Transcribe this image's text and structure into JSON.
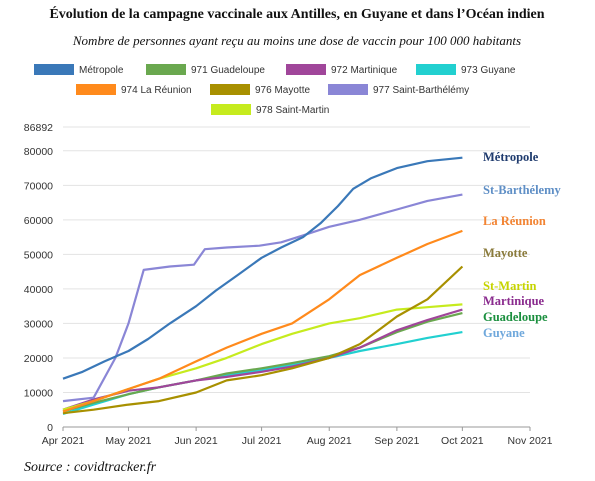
{
  "chart_data": {
    "type": "line",
    "title": "Évolution de la campagne vaccinale aux Antilles, en Guyane et dans l’Océan indien",
    "subtitle": "Nombre de personnes ayant reçu au moins une dose de vaccin pour 100 000 habitants",
    "source": "Source : covidtracker.fr",
    "ymax_label": "86892",
    "ylim": [
      0,
      86892
    ],
    "y_ticks": [
      0,
      10000,
      20000,
      30000,
      40000,
      50000,
      60000,
      70000,
      80000
    ],
    "x_ticks": [
      "Apr 2021",
      "May 2021",
      "Jun 2021",
      "Jul 2021",
      "Aug 2021",
      "Sep 2021",
      "Oct 2021",
      "Nov 2021"
    ],
    "xlim": [
      "2021-04-01",
      "2021-11-01"
    ],
    "grid": true,
    "legend_position": "top",
    "series": [
      {
        "name": "Métropole",
        "end_label": "Métropole",
        "color": "#3a78b8",
        "label_color": "#1f3b6e",
        "points": [
          [
            "2021-04-01",
            14000
          ],
          [
            "2021-04-10",
            16000
          ],
          [
            "2021-04-20",
            19000
          ],
          [
            "2021-05-01",
            22000
          ],
          [
            "2021-05-10",
            25500
          ],
          [
            "2021-05-20",
            30000
          ],
          [
            "2021-06-01",
            35000
          ],
          [
            "2021-06-10",
            39500
          ],
          [
            "2021-06-20",
            44000
          ],
          [
            "2021-07-01",
            49000
          ],
          [
            "2021-07-10",
            52000
          ],
          [
            "2021-07-20",
            55000
          ],
          [
            "2021-07-28",
            59000
          ],
          [
            "2021-08-05",
            64000
          ],
          [
            "2021-08-12",
            69000
          ],
          [
            "2021-08-20",
            72000
          ],
          [
            "2021-09-01",
            75000
          ],
          [
            "2021-09-15",
            77000
          ],
          [
            "2021-10-01",
            78000
          ]
        ]
      },
      {
        "name": "977 Saint-Barthélémy",
        "end_label": "St-Barthélemy",
        "color": "#8a86d6",
        "label_color": "#5f8fc6",
        "points": [
          [
            "2021-04-01",
            7500
          ],
          [
            "2021-04-15",
            8500
          ],
          [
            "2021-04-25",
            20000
          ],
          [
            "2021-05-01",
            30000
          ],
          [
            "2021-05-08",
            45500
          ],
          [
            "2021-05-20",
            46500
          ],
          [
            "2021-05-31",
            47000
          ],
          [
            "2021-06-05",
            51500
          ],
          [
            "2021-06-15",
            52000
          ],
          [
            "2021-06-30",
            52500
          ],
          [
            "2021-07-10",
            53500
          ],
          [
            "2021-07-20",
            55500
          ],
          [
            "2021-08-01",
            58000
          ],
          [
            "2021-08-15",
            60000
          ],
          [
            "2021-09-01",
            63000
          ],
          [
            "2021-09-15",
            65500
          ],
          [
            "2021-10-01",
            67300
          ]
        ]
      },
      {
        "name": "974 La Réunion",
        "end_label": "La Réunion",
        "color": "#ff8a1c",
        "label_color": "#f28433",
        "points": [
          [
            "2021-04-01",
            4500
          ],
          [
            "2021-04-15",
            7500
          ],
          [
            "2021-05-01",
            11000
          ],
          [
            "2021-05-15",
            14000
          ],
          [
            "2021-06-01",
            19000
          ],
          [
            "2021-06-15",
            23000
          ],
          [
            "2021-07-01",
            27000
          ],
          [
            "2021-07-15",
            30000
          ],
          [
            "2021-08-01",
            37000
          ],
          [
            "2021-08-15",
            44000
          ],
          [
            "2021-09-01",
            49000
          ],
          [
            "2021-09-15",
            53000
          ],
          [
            "2021-10-01",
            56800
          ]
        ]
      },
      {
        "name": "976 Mayotte",
        "end_label": "Mayotte",
        "color": "#a89000",
        "label_color": "#8a7a3a",
        "points": [
          [
            "2021-04-01",
            4000
          ],
          [
            "2021-04-15",
            5000
          ],
          [
            "2021-05-01",
            6500
          ],
          [
            "2021-05-15",
            7500
          ],
          [
            "2021-06-01",
            10000
          ],
          [
            "2021-06-15",
            13500
          ],
          [
            "2021-07-01",
            15000
          ],
          [
            "2021-07-15",
            17000
          ],
          [
            "2021-08-01",
            20000
          ],
          [
            "2021-08-15",
            24000
          ],
          [
            "2021-09-01",
            32000
          ],
          [
            "2021-09-15",
            37000
          ],
          [
            "2021-10-01",
            46500
          ]
        ]
      },
      {
        "name": "978 Saint-Martin",
        "end_label": "St-Martin",
        "color": "#c6eb1e",
        "label_color": "#c6d400",
        "points": [
          [
            "2021-04-01",
            5000
          ],
          [
            "2021-04-15",
            7500
          ],
          [
            "2021-05-01",
            11000
          ],
          [
            "2021-05-15",
            14000
          ],
          [
            "2021-06-01",
            17000
          ],
          [
            "2021-06-15",
            20000
          ],
          [
            "2021-07-01",
            24000
          ],
          [
            "2021-07-15",
            27000
          ],
          [
            "2021-08-01",
            30000
          ],
          [
            "2021-08-15",
            31500
          ],
          [
            "2021-09-01",
            34000
          ],
          [
            "2021-09-15",
            34700
          ],
          [
            "2021-10-01",
            35500
          ]
        ]
      },
      {
        "name": "972 Martinique",
        "end_label": "Martinique",
        "color": "#a0469a",
        "label_color": "#8a2b8e",
        "points": [
          [
            "2021-04-01",
            5000
          ],
          [
            "2021-04-15",
            8000
          ],
          [
            "2021-05-01",
            10500
          ],
          [
            "2021-05-15",
            11500
          ],
          [
            "2021-06-01",
            13500
          ],
          [
            "2021-06-15",
            14500
          ],
          [
            "2021-07-01",
            16000
          ],
          [
            "2021-07-15",
            17500
          ],
          [
            "2021-08-01",
            20000
          ],
          [
            "2021-08-15",
            23000
          ],
          [
            "2021-09-01",
            28000
          ],
          [
            "2021-09-15",
            31000
          ],
          [
            "2021-10-01",
            34000
          ]
        ]
      },
      {
        "name": "971 Guadeloupe",
        "end_label": "Guadeloupe",
        "color": "#6aa84f",
        "label_color": "#1a8f3e",
        "points": [
          [
            "2021-04-01",
            4500
          ],
          [
            "2021-04-15",
            7000
          ],
          [
            "2021-05-01",
            9500
          ],
          [
            "2021-05-15",
            11500
          ],
          [
            "2021-06-01",
            13500
          ],
          [
            "2021-06-15",
            15500
          ],
          [
            "2021-07-01",
            17000
          ],
          [
            "2021-07-15",
            18500
          ],
          [
            "2021-08-01",
            20500
          ],
          [
            "2021-08-15",
            23000
          ],
          [
            "2021-09-01",
            27500
          ],
          [
            "2021-09-15",
            30500
          ],
          [
            "2021-10-01",
            33000
          ]
        ]
      },
      {
        "name": "973 Guyane",
        "end_label": "Guyane",
        "color": "#22d0d0",
        "label_color": "#6fa8dc",
        "points": [
          [
            "2021-04-01",
            3800
          ],
          [
            "2021-04-15",
            6500
          ],
          [
            "2021-05-01",
            9500
          ],
          [
            "2021-05-15",
            11500
          ],
          [
            "2021-06-01",
            13500
          ],
          [
            "2021-06-15",
            15000
          ],
          [
            "2021-07-01",
            16500
          ],
          [
            "2021-07-15",
            18000
          ],
          [
            "2021-08-01",
            20000
          ],
          [
            "2021-08-15",
            22000
          ],
          [
            "2021-09-01",
            24000
          ],
          [
            "2021-09-15",
            25800
          ],
          [
            "2021-10-01",
            27500
          ]
        ]
      }
    ],
    "legend_rows": [
      [
        "Métropole",
        "971 Guadeloupe",
        "972 Martinique",
        "973 Guyane"
      ],
      [
        "974 La Réunion",
        "976 Mayotte",
        "977 Saint-Barthélémy"
      ],
      [
        "978 Saint-Martin"
      ]
    ]
  }
}
